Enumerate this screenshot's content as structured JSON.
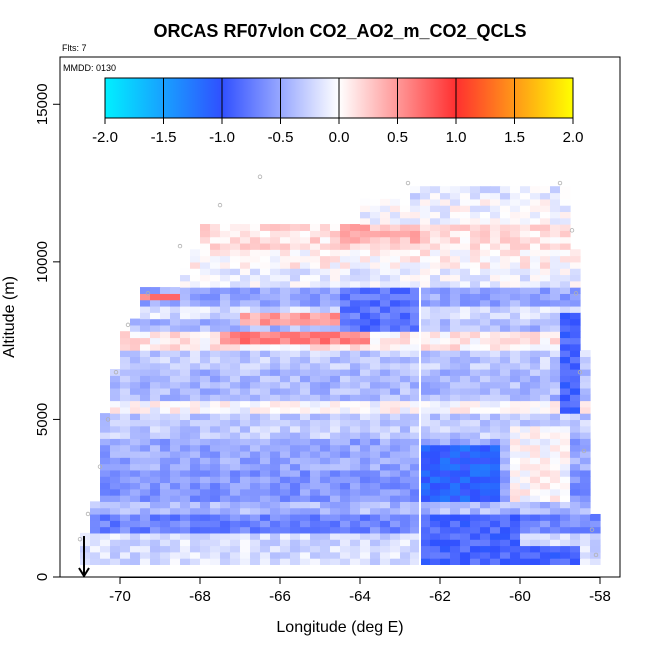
{
  "chart_data": {
    "type": "heatmap",
    "title": "ORCAS RF07vlon CO2_AO2_m_CO2_QCLS",
    "xlabel": "Longitude (deg E)",
    "ylabel": "Altitude (m)",
    "xlim": [
      -71.5,
      -57.5
    ],
    "ylim": [
      0,
      16500
    ],
    "xticks": [
      -70,
      -68,
      -66,
      -64,
      -62,
      -60,
      -58
    ],
    "yticks": [
      0,
      5000,
      10000,
      15000
    ],
    "annotations": {
      "flts": "Flts: 7",
      "mmdd": "MMDD: 0130"
    },
    "colorbar": {
      "range": [
        -2.0,
        2.0
      ],
      "ticks": [
        "-2.0",
        "-1.5",
        "-1.0",
        "-0.5",
        "0.0",
        "0.5",
        "1.0",
        "1.5",
        "2.0"
      ],
      "colors": [
        "#00f0ff",
        "#3050ff",
        "#ffffff",
        "#ff3030",
        "#ffff00"
      ]
    },
    "cell_size": {
      "lon": 0.25,
      "alt": 200
    },
    "bands": [
      {
        "alt": [
          400,
          1500
        ],
        "lon": [
          -71.0,
          -58.0
        ],
        "value": -0.2
      },
      {
        "alt": [
          1500,
          2100
        ],
        "lon": [
          -70.8,
          -58.0
        ],
        "value": -0.7
      },
      {
        "alt": [
          2100,
          2500
        ],
        "lon": [
          -70.7,
          -58.2
        ],
        "value": -0.4
      },
      {
        "alt": [
          2500,
          3500
        ],
        "lon": [
          -70.6,
          -58.2
        ],
        "value": -0.6
      },
      {
        "alt": [
          3500,
          4500
        ],
        "lon": [
          -70.5,
          -58.2
        ],
        "value": -0.5
      },
      {
        "alt": [
          4500,
          5200
        ],
        "lon": [
          -70.4,
          -58.2
        ],
        "value": -0.3
      },
      {
        "alt": [
          5200,
          5600
        ],
        "lon": [
          -70.3,
          -58.2
        ],
        "value": 0.0
      },
      {
        "alt": [
          5600,
          6600
        ],
        "lon": [
          -70.2,
          -58.3
        ],
        "value": -0.4
      },
      {
        "alt": [
          6600,
          7300
        ],
        "lon": [
          -70.0,
          -58.3
        ],
        "value": -0.3
      },
      {
        "alt": [
          7300,
          7800
        ],
        "lon": [
          -70.0,
          -58.4
        ],
        "value": 0.1
      },
      {
        "alt": [
          7800,
          8300
        ],
        "lon": [
          -69.8,
          -58.4
        ],
        "value": -0.4
      },
      {
        "alt": [
          8300,
          8700
        ],
        "lon": [
          -69.6,
          -58.5
        ],
        "value": -0.2
      },
      {
        "alt": [
          8700,
          9200
        ],
        "lon": [
          -69.4,
          -58.5
        ],
        "value": -0.5
      },
      {
        "alt": [
          9200,
          9800
        ],
        "lon": [
          -68.5,
          -58.6
        ],
        "value": -0.1
      },
      {
        "alt": [
          9800,
          10400
        ],
        "lon": [
          -68.3,
          -58.6
        ],
        "value": 0.05
      },
      {
        "alt": [
          10400,
          11300
        ],
        "lon": [
          -68.0,
          -58.8
        ],
        "value": 0.15
      },
      {
        "alt": [
          11300,
          12000
        ],
        "lon": [
          -64.0,
          -58.8
        ],
        "value": -0.05
      },
      {
        "alt": [
          12000,
          12500
        ],
        "lon": [
          -62.7,
          -58.8
        ],
        "value": -0.15
      }
    ],
    "patches": [
      {
        "alt": [
          7500,
          7800
        ],
        "lon": [
          -67.5,
          -63.8
        ],
        "value": 0.6
      },
      {
        "alt": [
          8100,
          8400
        ],
        "lon": [
          -67.0,
          -64.2
        ],
        "value": 0.45
      },
      {
        "alt": [
          8800,
          9000
        ],
        "lon": [
          -69.4,
          -68.5
        ],
        "value": 0.6
      },
      {
        "alt": [
          10600,
          11200
        ],
        "lon": [
          -64.5,
          -62.5
        ],
        "value": 0.35
      },
      {
        "alt": [
          2500,
          4200
        ],
        "lon": [
          -62.5,
          -60.5
        ],
        "value": -1.1
      },
      {
        "alt": [
          1000,
          2000
        ],
        "lon": [
          -62.5,
          -60.0
        ],
        "value": -0.9
      },
      {
        "alt": [
          400,
          1000
        ],
        "lon": [
          -62.5,
          -58.5
        ],
        "value": -0.9
      },
      {
        "alt": [
          5300,
          8500
        ],
        "lon": [
          -59.0,
          -58.5
        ],
        "value": -0.9
      },
      {
        "alt": [
          7900,
          9200
        ],
        "lon": [
          -64.5,
          -62.5
        ],
        "value": -0.8
      },
      {
        "alt": [
          2500,
          4800
        ],
        "lon": [
          -60.3,
          -58.8
        ],
        "value": 0.0
      }
    ],
    "flight_track": [
      {
        "lon": -66.5,
        "alt": 12700
      },
      {
        "lon": -67.5,
        "alt": 11800
      },
      {
        "lon": -68.5,
        "alt": 10500
      },
      {
        "lon": -69.3,
        "alt": 9000
      },
      {
        "lon": -69.8,
        "alt": 8000
      },
      {
        "lon": -70.1,
        "alt": 6500
      },
      {
        "lon": -70.3,
        "alt": 5000
      },
      {
        "lon": -70.5,
        "alt": 3500
      },
      {
        "lon": -70.8,
        "alt": 2000
      },
      {
        "lon": -71.0,
        "alt": 1200
      },
      {
        "lon": -62.8,
        "alt": 12500
      },
      {
        "lon": -59.0,
        "alt": 12500
      },
      {
        "lon": -58.7,
        "alt": 11000
      },
      {
        "lon": -58.6,
        "alt": 9000
      },
      {
        "lon": -58.5,
        "alt": 6500
      },
      {
        "lon": -58.4,
        "alt": 4000
      },
      {
        "lon": -58.2,
        "alt": 1500
      },
      {
        "lon": -58.1,
        "alt": 700
      }
    ],
    "vertical_line_lon": -62.5,
    "marker_lon": -70.9
  }
}
